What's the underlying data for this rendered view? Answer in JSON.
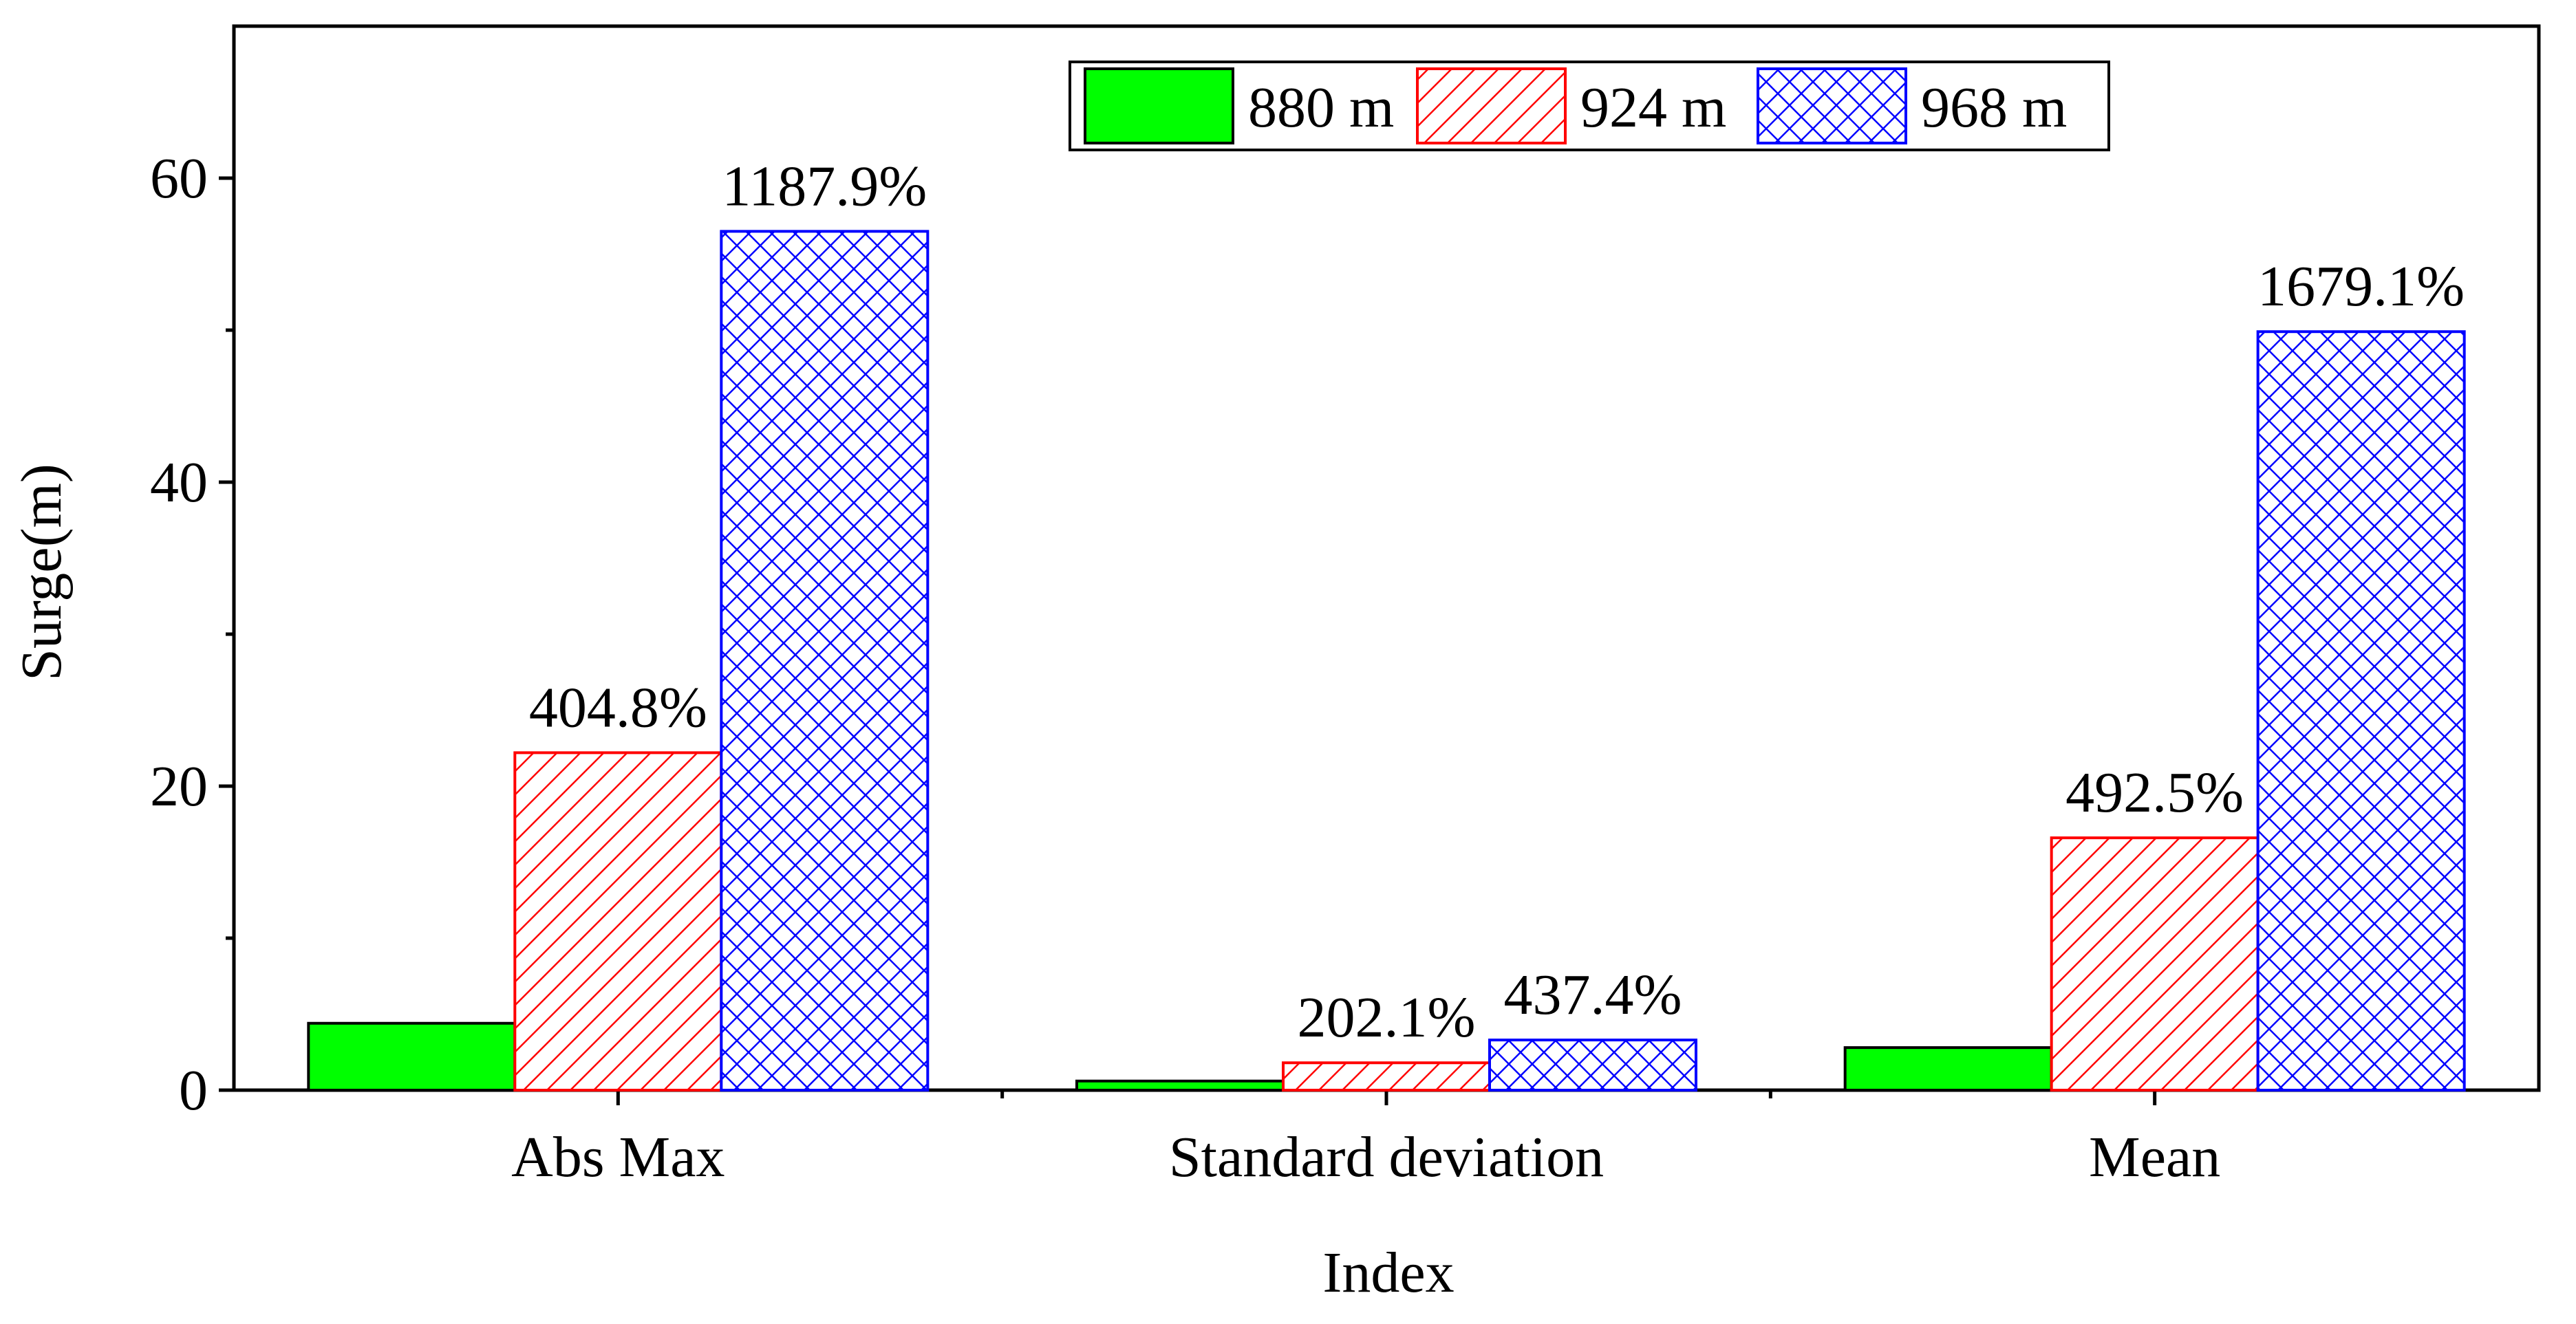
{
  "chart_data": {
    "type": "bar",
    "title": "",
    "xlabel": "Index",
    "ylabel": "Surge(m)",
    "categories": [
      "Abs Max",
      "Standard deviation",
      "Mean"
    ],
    "ylim": [
      0,
      70
    ],
    "yticks": [
      0,
      20,
      40,
      60
    ],
    "y_minor_step": 10,
    "grid": false,
    "legend_position": "top-right",
    "series": [
      {
        "name": "880 m",
        "color": "#00ff00",
        "edge_color": "#000000",
        "pattern": "solid",
        "values": [
          4.4,
          0.6,
          2.8
        ],
        "labels": [
          "",
          "",
          ""
        ]
      },
      {
        "name": "924 m",
        "color": "#ff0000",
        "edge_color": "#ff0000",
        "pattern": "hatch-diagonal",
        "values": [
          22.2,
          1.8,
          16.6
        ],
        "labels": [
          "404.8%",
          "202.1%",
          "492.5%"
        ]
      },
      {
        "name": "968 m",
        "color": "#0000ff",
        "edge_color": "#0000ff",
        "pattern": "hatch-cross",
        "values": [
          56.5,
          3.3,
          49.9
        ],
        "labels": [
          "1187.9%",
          "437.4%",
          "1679.1%"
        ]
      }
    ]
  }
}
